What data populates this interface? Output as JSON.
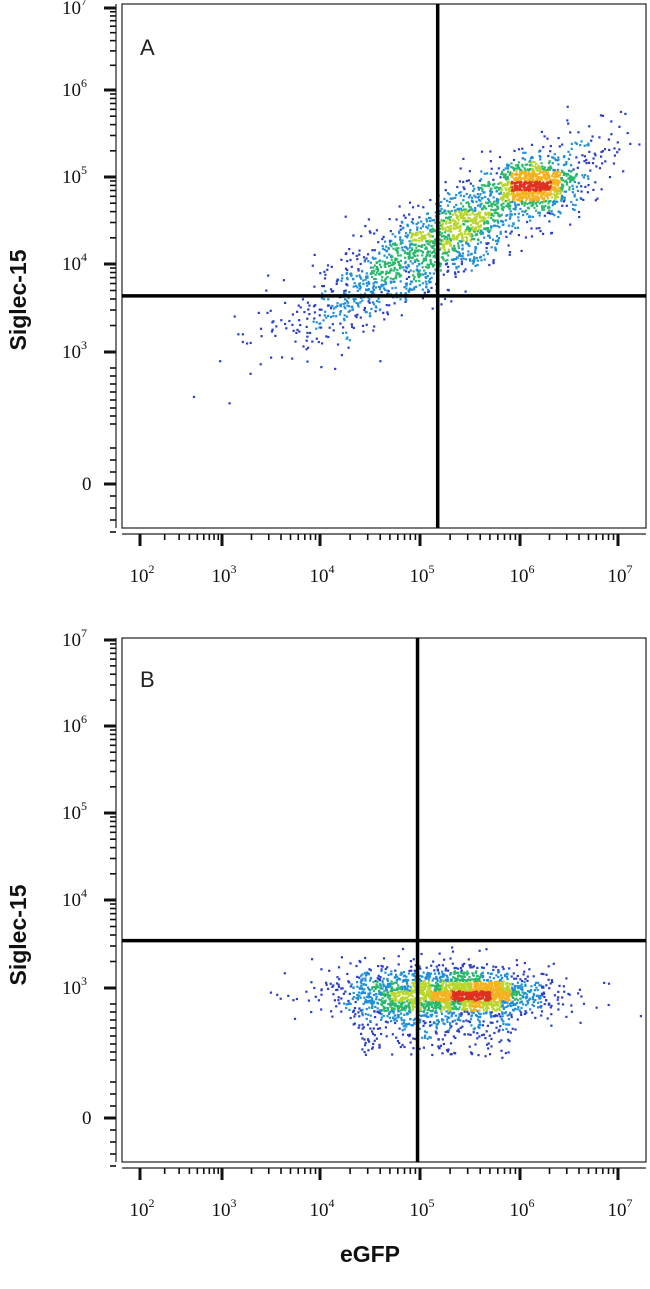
{
  "chart_data": [
    {
      "type": "scatter",
      "subtype": "flow-cytometry density dot plot",
      "panel_label": "A",
      "xlabel": "",
      "ylabel": "Siglec-15",
      "x_scale": "biexponential (log above 10^3)",
      "y_scale": "biexponential (log above 10^3, 0 shown)",
      "x_ticks": [
        {
          "base": "10",
          "exp": "2"
        },
        {
          "base": "10",
          "exp": "3"
        },
        {
          "base": "10",
          "exp": "4"
        },
        {
          "base": "10",
          "exp": "5"
        },
        {
          "base": "10",
          "exp": "6"
        },
        {
          "base": "10",
          "exp": "7"
        }
      ],
      "y_ticks": [
        {
          "base": "0",
          "exp": ""
        },
        {
          "base": "10",
          "exp": "3"
        },
        {
          "base": "10",
          "exp": "4"
        },
        {
          "base": "10",
          "exp": "5"
        },
        {
          "base": "10",
          "exp": "6"
        },
        {
          "base": "10",
          "exp": "7"
        }
      ],
      "x_range_log10": [
        1.65,
        7.2
      ],
      "y_range_log10": [
        1.8,
        7.3
      ],
      "quadrant_gate": {
        "x": 130000,
        "y": 4500
      },
      "populations": [
        {
          "note": "main diagonal cluster",
          "x_log10_center": 5.2,
          "y_log10_center": 4.35,
          "correlation": 0.85
        },
        {
          "note": "dense high-expression core",
          "x_log10_center": 6.15,
          "y_log10_center": 4.95
        }
      ],
      "grid": false,
      "density_colors": [
        "#2b3ec7",
        "#1e8fd8",
        "#29b86b",
        "#b9d62a",
        "#f3b21e",
        "#e0301e"
      ]
    },
    {
      "type": "scatter",
      "subtype": "flow-cytometry density dot plot",
      "panel_label": "B",
      "xlabel": "eGFP",
      "ylabel": "Siglec-15",
      "x_scale": "biexponential (log above 10^3)",
      "y_scale": "biexponential (log above 10^3, 0 shown)",
      "x_ticks": [
        {
          "base": "10",
          "exp": "2"
        },
        {
          "base": "10",
          "exp": "3"
        },
        {
          "base": "10",
          "exp": "4"
        },
        {
          "base": "10",
          "exp": "5"
        },
        {
          "base": "10",
          "exp": "6"
        },
        {
          "base": "10",
          "exp": "7"
        }
      ],
      "y_ticks": [
        {
          "base": "0",
          "exp": ""
        },
        {
          "base": "10",
          "exp": "3"
        },
        {
          "base": "10",
          "exp": "4"
        },
        {
          "base": "10",
          "exp": "5"
        },
        {
          "base": "10",
          "exp": "6"
        },
        {
          "base": "10",
          "exp": "7"
        }
      ],
      "x_range_log10": [
        1.65,
        7.2
      ],
      "y_range_log10": [
        1.8,
        7.3
      ],
      "quadrant_gate": {
        "x": 80000,
        "y": 3500
      },
      "populations": [
        {
          "note": "horizontal cluster at low Siglec-15",
          "x_log10_center": 5.15,
          "y_log10_center": 2.95,
          "correlation": 0.1
        },
        {
          "note": "dense core",
          "x_log10_center": 5.55,
          "y_log10_center": 2.95
        }
      ],
      "grid": false,
      "density_colors": [
        "#2b3ec7",
        "#1e8fd8",
        "#29b86b",
        "#b9d62a",
        "#f3b21e",
        "#e0301e"
      ]
    }
  ]
}
